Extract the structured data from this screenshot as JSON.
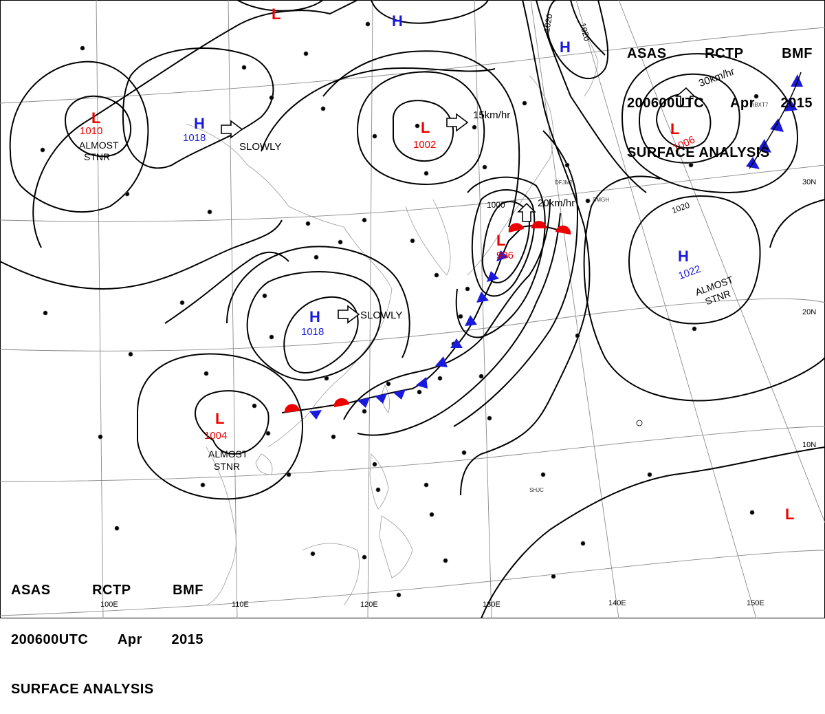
{
  "header": {
    "line1": [
      "ASAS",
      "RCTP",
      "BMF"
    ],
    "line2": [
      "200600UTC",
      "Apr",
      "2015"
    ],
    "line3": "SURFACE ANALYSIS"
  },
  "pressure_centers": [
    {
      "type": "L",
      "value": "1010",
      "note": "ALMOST STNR"
    },
    {
      "type": "H",
      "value": "1018",
      "note": "SLOWLY"
    },
    {
      "type": "L",
      "value": "1002",
      "note": "15km/hr"
    },
    {
      "type": "L",
      "value": "1006",
      "note": "30km/hr"
    },
    {
      "type": "L",
      "value": "996",
      "note": "20km/hr"
    },
    {
      "type": "H",
      "value": "1022",
      "note": "ALMOST STNR"
    },
    {
      "type": "H",
      "value": "1018",
      "note": "SLOWLY"
    },
    {
      "type": "L",
      "value": "1004",
      "note": "ALMOST STNR"
    },
    {
      "type": "H",
      "value": "",
      "note": ""
    },
    {
      "type": "L",
      "value": "",
      "note": ""
    },
    {
      "type": "L",
      "value": "",
      "note": ""
    }
  ],
  "isobar_labels": [
    "1020",
    "1020",
    "1020",
    "1000"
  ],
  "lon_labels": [
    "100E",
    "110E",
    "120E",
    "130E",
    "140E",
    "150E"
  ],
  "lat_labels": [
    "30N",
    "20N",
    "10N"
  ],
  "station_codes": [
    "SMGH",
    "SHJC",
    "ABXT7",
    "DFJM2"
  ],
  "colors": {
    "low": "#ee0000",
    "high": "#1a1adc",
    "line": "#000000",
    "grid": "#8a8a8a",
    "coast": "#9a9a9a"
  }
}
